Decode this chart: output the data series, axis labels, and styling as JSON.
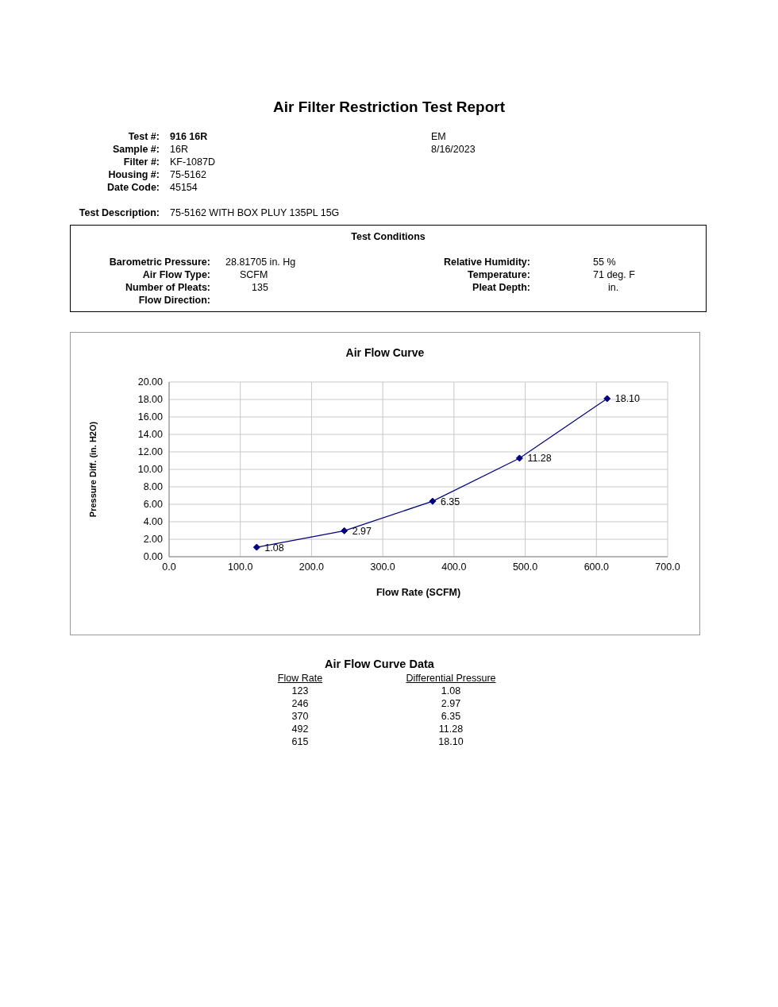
{
  "chart_data": {
    "type": "line",
    "title": "Air Filter Restriction Test Report",
    "subtitle": "Air Flow Curve",
    "xlabel": "Flow Rate (SCFM)",
    "ylabel": "Pressure Diff. (in. H2O)",
    "annotations": [
      "Test #:",
      "916 16R",
      "Sample #:",
      "16R",
      "Filter #:",
      "KF-1087D",
      "Housing #:",
      "75-5162",
      "Date Code:",
      "45154",
      "EM",
      "8/16/2023",
      "Test Description:",
      "75-5162 WITH BOX PLUY 135PL 15G",
      "Test Conditions",
      "Barometric Pressure:",
      "28.81705 in. Hg",
      "Air Flow Type:",
      "SCFM",
      "Number of Pleats:",
      "135",
      "Flow Direction:",
      "Relative Humidity:",
      "55 %",
      "Temperature:",
      "71 deg. F",
      "Pleat Depth:",
      "in.",
      "Air Flow Curve Data",
      "Flow Rate",
      "Differential Pressure",
      "123",
      "246",
      "370",
      "492",
      "615"
    ],
    "x": [
      123,
      246,
      370,
      492,
      615
    ],
    "series": [
      {
        "color": "#000080",
        "values": [
          1.08,
          2.97,
          6.35,
          11.28,
          18.1
        ],
        "value_labels": [
          "1.08",
          "2.97",
          "6.35",
          "11.28",
          "18.10"
        ]
      }
    ],
    "xlim": [
      0,
      700
    ],
    "xticks": [
      {
        "value": 0,
        "label": "0.0"
      },
      {
        "value": 100,
        "label": "100.0"
      },
      {
        "value": 200,
        "label": "200.0"
      },
      {
        "value": 300,
        "label": "300.0"
      },
      {
        "value": 400,
        "label": "400.0"
      },
      {
        "value": 500,
        "label": "500.0"
      },
      {
        "value": 600,
        "label": "600.0"
      },
      {
        "value": 700,
        "label": "700.0"
      }
    ],
    "ylim": [
      0,
      20
    ],
    "yticks": [
      {
        "value": 0,
        "label": "0.00"
      },
      {
        "value": 2,
        "label": "2.00"
      },
      {
        "value": 4,
        "label": "4.00"
      },
      {
        "value": 6,
        "label": "6.00"
      },
      {
        "value": 8,
        "label": "8.00"
      },
      {
        "value": 10,
        "label": "10.00"
      },
      {
        "value": 12,
        "label": "12.00"
      },
      {
        "value": 14,
        "label": "14.00"
      },
      {
        "value": 16,
        "label": "16.00"
      },
      {
        "value": 18,
        "label": "18.00"
      },
      {
        "value": 20,
        "label": "20.00"
      }
    ],
    "grid": true,
    "marker": "diamond",
    "line_style": "solid",
    "legend": false
  }
}
